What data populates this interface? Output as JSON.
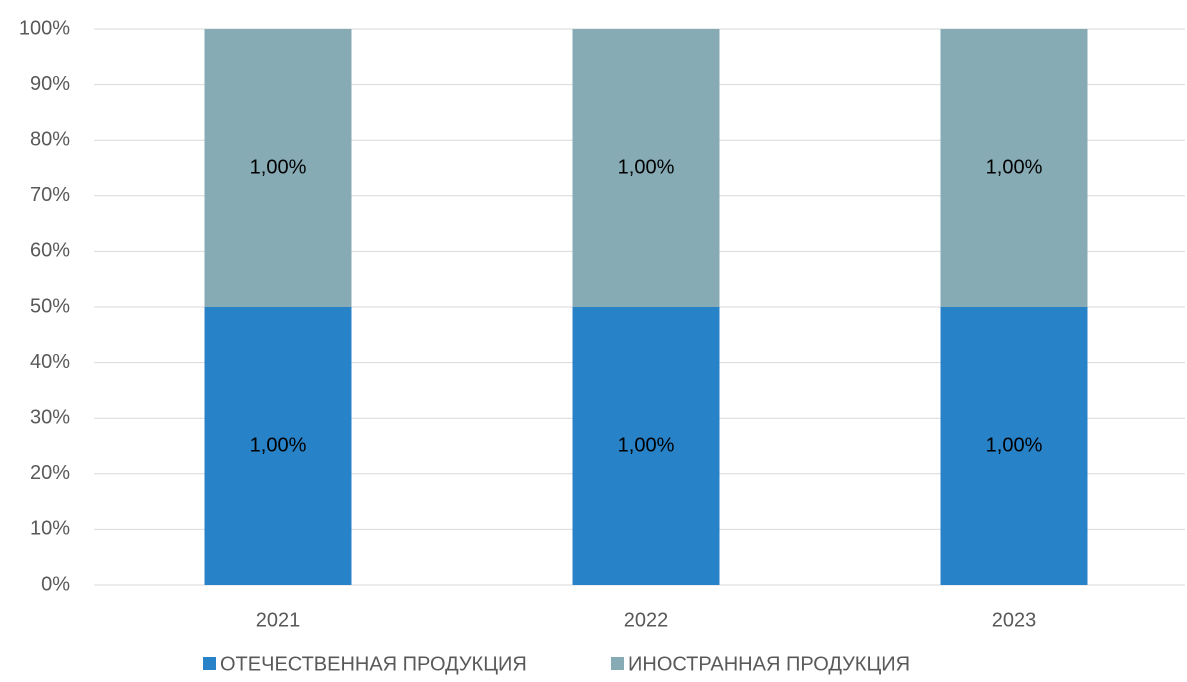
{
  "chart_data": {
    "type": "bar",
    "stacking": "percent",
    "categories": [
      "2021",
      "2022",
      "2023"
    ],
    "series": [
      {
        "name": "ОТЕЧЕСТВЕННАЯ ПРОДУКЦИЯ",
        "color": "#2782c8",
        "values": [
          1,
          1,
          1
        ],
        "value_labels": [
          "1,00%",
          "1,00%",
          "1,00%"
        ]
      },
      {
        "name": "ИНОСТРАННАЯ ПРОДУКЦИЯ",
        "color": "#86abb5",
        "values": [
          1,
          1,
          1
        ],
        "value_labels": [
          "1,00%",
          "1,00%",
          "1,00%"
        ]
      }
    ],
    "ylim": [
      0,
      100
    ],
    "yticks": [
      {
        "value": 0,
        "label": "0%"
      },
      {
        "value": 10,
        "label": "10%"
      },
      {
        "value": 20,
        "label": "20%"
      },
      {
        "value": 30,
        "label": "30%"
      },
      {
        "value": 40,
        "label": "40%"
      },
      {
        "value": 50,
        "label": "50%"
      },
      {
        "value": 60,
        "label": "60%"
      },
      {
        "value": 70,
        "label": "70%"
      },
      {
        "value": 80,
        "label": "80%"
      },
      {
        "value": 90,
        "label": "90%"
      },
      {
        "value": 100,
        "label": "100%"
      }
    ],
    "grid": true,
    "legend": "bottom"
  }
}
